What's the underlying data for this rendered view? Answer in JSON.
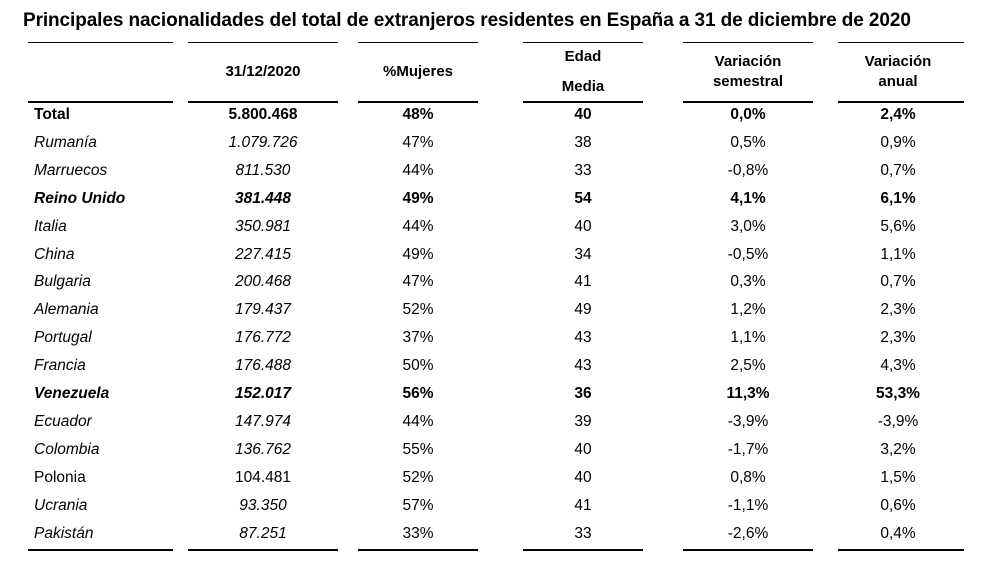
{
  "chart_data": {
    "type": "table",
    "title": "Principales nacionalidades del total de extranjeros residentes en España a 31 de diciembre de 2020",
    "columns": [
      "",
      "31/12/2020",
      "%Mujeres",
      "Edad Media",
      "Variación semestral",
      "Variación anual"
    ],
    "header": {
      "col1": "31/12/2020",
      "col2": "%Mujeres",
      "col3_line1": "Edad",
      "col3_line2": "Media",
      "col4_line1": "Variación",
      "col4_line2": "semestral",
      "col5_line1": "Variación",
      "col5_line2": "anual"
    },
    "rows": [
      {
        "name": "Total",
        "total": "5.800.468",
        "mujeres": "48%",
        "edad": "40",
        "var_sem": "0,0%",
        "var_anual": "2,4%",
        "bold": true,
        "italic": false
      },
      {
        "name": "Rumanía",
        "total": "1.079.726",
        "mujeres": "47%",
        "edad": "38",
        "var_sem": "0,5%",
        "var_anual": "0,9%",
        "bold": false,
        "italic": true
      },
      {
        "name": "Marruecos",
        "total": "811.530",
        "mujeres": "44%",
        "edad": "33",
        "var_sem": "-0,8%",
        "var_anual": "0,7%",
        "bold": false,
        "italic": true
      },
      {
        "name": "Reino Unido",
        "total": "381.448",
        "mujeres": "49%",
        "edad": "54",
        "var_sem": "4,1%",
        "var_anual": "6,1%",
        "bold": true,
        "italic": true
      },
      {
        "name": "Italia",
        "total": "350.981",
        "mujeres": "44%",
        "edad": "40",
        "var_sem": "3,0%",
        "var_anual": "5,6%",
        "bold": false,
        "italic": true
      },
      {
        "name": "China",
        "total": "227.415",
        "mujeres": "49%",
        "edad": "34",
        "var_sem": "-0,5%",
        "var_anual": "1,1%",
        "bold": false,
        "italic": true
      },
      {
        "name": "Bulgaria",
        "total": "200.468",
        "mujeres": "47%",
        "edad": "41",
        "var_sem": "0,3%",
        "var_anual": "0,7%",
        "bold": false,
        "italic": true
      },
      {
        "name": "Alemania",
        "total": "179.437",
        "mujeres": "52%",
        "edad": "49",
        "var_sem": "1,2%",
        "var_anual": "2,3%",
        "bold": false,
        "italic": true
      },
      {
        "name": "Portugal",
        "total": "176.772",
        "mujeres": "37%",
        "edad": "43",
        "var_sem": "1,1%",
        "var_anual": "2,3%",
        "bold": false,
        "italic": true
      },
      {
        "name": "Francia",
        "total": "176.488",
        "mujeres": "50%",
        "edad": "43",
        "var_sem": "2,5%",
        "var_anual": "4,3%",
        "bold": false,
        "italic": true
      },
      {
        "name": "Venezuela",
        "total": "152.017",
        "mujeres": "56%",
        "edad": "36",
        "var_sem": "11,3%",
        "var_anual": "53,3%",
        "bold": true,
        "italic": true
      },
      {
        "name": "Ecuador",
        "total": "147.974",
        "mujeres": "44%",
        "edad": "39",
        "var_sem": "-3,9%",
        "var_anual": "-3,9%",
        "bold": false,
        "italic": true
      },
      {
        "name": "Colombia",
        "total": "136.762",
        "mujeres": "55%",
        "edad": "40",
        "var_sem": "-1,7%",
        "var_anual": "3,2%",
        "bold": false,
        "italic": true
      },
      {
        "name": "Polonia",
        "total": "104.481",
        "mujeres": "52%",
        "edad": "40",
        "var_sem": "0,8%",
        "var_anual": "1,5%",
        "bold": false,
        "italic": false
      },
      {
        "name": "Ucrania",
        "total": "93.350",
        "mujeres": "57%",
        "edad": "41",
        "var_sem": "-1,1%",
        "var_anual": "0,6%",
        "bold": false,
        "italic": true
      },
      {
        "name": "Pakistán",
        "total": "87.251",
        "mujeres": "33%",
        "edad": "33",
        "var_sem": "-2,6%",
        "var_anual": "0,4%",
        "bold": false,
        "italic": true
      }
    ]
  }
}
